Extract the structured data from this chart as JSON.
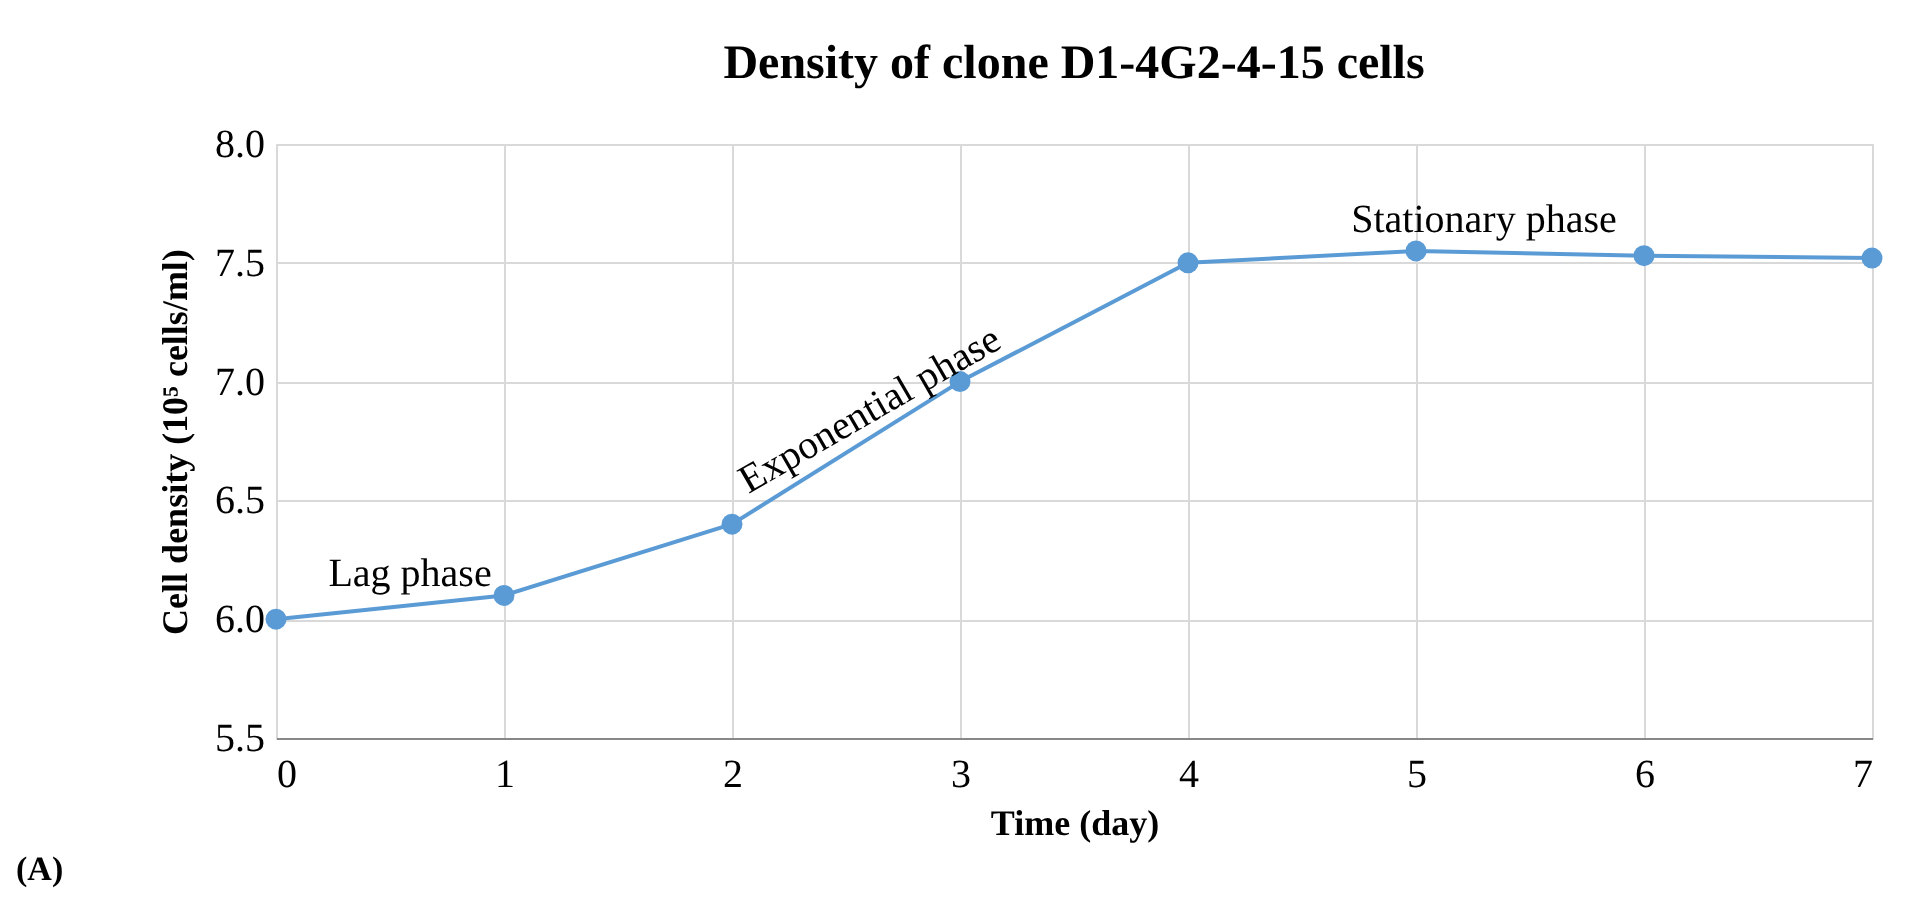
{
  "chart_data": {
    "type": "line",
    "title": "Density of clone D1-4G2-4-15 cells",
    "xlabel": "Time (day)",
    "ylabel": "Cell density (10⁵ cells/ml)",
    "x": [
      0,
      1,
      2,
      3,
      4,
      5,
      6,
      7
    ],
    "series": [
      {
        "color": "#5b9bd5",
        "values": [
          6.0,
          6.1,
          6.4,
          7.0,
          7.5,
          7.55,
          7.53,
          7.52
        ]
      }
    ],
    "xlim": [
      0,
      7
    ],
    "xticks": [
      0,
      1,
      2,
      3,
      4,
      5,
      6,
      7
    ],
    "ylim": [
      5.5,
      8.0
    ],
    "yticks": [
      5.5,
      {
        "value": 6,
        "label": "6.0"
      },
      6.5,
      {
        "value": 7,
        "label": "7.0"
      },
      7.5,
      {
        "value": 8,
        "label": "8.0"
      }
    ],
    "grid": true,
    "marker": "circle",
    "line_style": "solid",
    "annotations": [
      "Lag phase",
      "Exponential phase",
      "Stationary phase",
      "(A)"
    ]
  }
}
